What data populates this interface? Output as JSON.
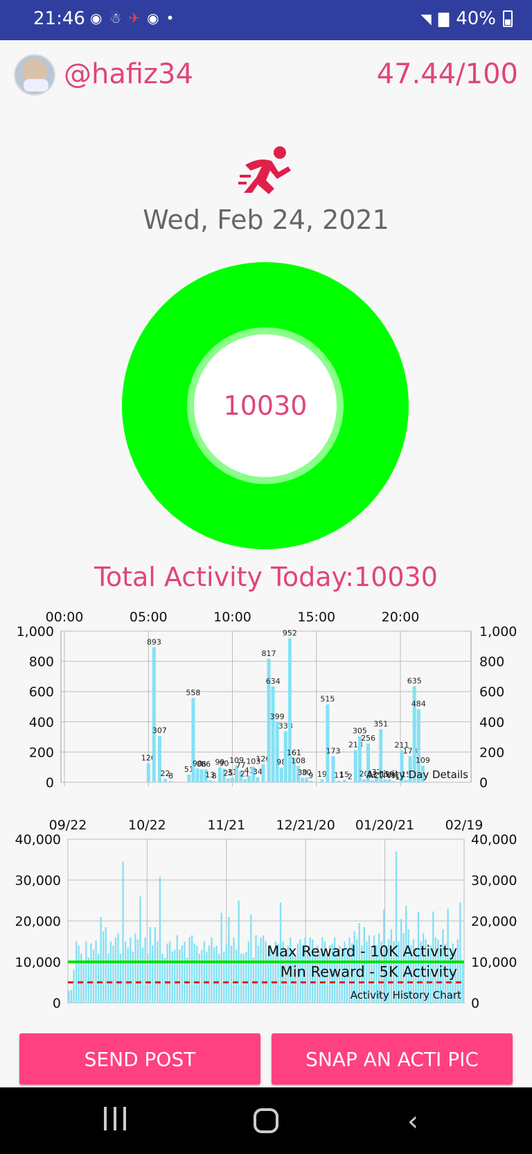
{
  "status_bar": {
    "time": "21:46",
    "battery_percent": "40%",
    "notification_icons": [
      "messenger-icon",
      "activity-app-icon",
      "runner-icon",
      "messenger-icon",
      "dot-icon"
    ],
    "system_icons": [
      "wifi-icon",
      "signal-icon",
      "battery-icon"
    ]
  },
  "header": {
    "username": "@hafiz34",
    "score": "47.44/100"
  },
  "activity": {
    "date": "Wed, Feb 24, 2021",
    "ring_value": "10030",
    "ring_progress": 1.0,
    "total_label": "Total Activity Today:10030"
  },
  "colors": {
    "accent": "#e0457b",
    "button": "#ff4081",
    "ring": "#00ff00",
    "bars": "#84e1f5",
    "max_line": "#00e000",
    "min_line": "#e02020",
    "status_bar": "#303f9f"
  },
  "chart_data": [
    {
      "type": "bar",
      "caption": "Activity Day Details",
      "x_tick_labels": [
        "00:00",
        "05:00",
        "10:00",
        "15:00",
        "20:00"
      ],
      "y_ticks": [
        "0",
        "200",
        "400",
        "600",
        "800",
        "1,000"
      ],
      "ylim": [
        0,
        1000
      ],
      "xlim_minutes": [
        0,
        1440
      ],
      "grid": true,
      "points": [
        {
          "t": 300,
          "v": 126
        },
        {
          "t": 320,
          "v": 893
        },
        {
          "t": 340,
          "v": 307
        },
        {
          "t": 360,
          "v": 22
        },
        {
          "t": 380,
          "v": 8
        },
        {
          "t": 445,
          "v": 51
        },
        {
          "t": 460,
          "v": 558
        },
        {
          "t": 475,
          "v": 90
        },
        {
          "t": 490,
          "v": 86
        },
        {
          "t": 505,
          "v": 86
        },
        {
          "t": 520,
          "v": 13
        },
        {
          "t": 535,
          "v": 8
        },
        {
          "t": 555,
          "v": 99
        },
        {
          "t": 570,
          "v": 90
        },
        {
          "t": 585,
          "v": 25
        },
        {
          "t": 600,
          "v": 31
        },
        {
          "t": 615,
          "v": 109
        },
        {
          "t": 630,
          "v": 77
        },
        {
          "t": 645,
          "v": 21
        },
        {
          "t": 660,
          "v": 43
        },
        {
          "t": 675,
          "v": 103
        },
        {
          "t": 690,
          "v": 34
        },
        {
          "t": 710,
          "v": 120
        },
        {
          "t": 730,
          "v": 817
        },
        {
          "t": 745,
          "v": 634
        },
        {
          "t": 760,
          "v": 399
        },
        {
          "t": 775,
          "v": 98
        },
        {
          "t": 790,
          "v": 338
        },
        {
          "t": 805,
          "v": 952
        },
        {
          "t": 820,
          "v": 161
        },
        {
          "t": 835,
          "v": 108
        },
        {
          "t": 850,
          "v": 30
        },
        {
          "t": 865,
          "v": 30
        },
        {
          "t": 880,
          "v": 9
        },
        {
          "t": 920,
          "v": 19
        },
        {
          "t": 940,
          "v": 515
        },
        {
          "t": 960,
          "v": 173
        },
        {
          "t": 980,
          "v": 11
        },
        {
          "t": 1000,
          "v": 15
        },
        {
          "t": 1020,
          "v": 2
        },
        {
          "t": 1040,
          "v": 213
        },
        {
          "t": 1055,
          "v": 305
        },
        {
          "t": 1070,
          "v": 20
        },
        {
          "t": 1085,
          "v": 256
        },
        {
          "t": 1100,
          "v": 13
        },
        {
          "t": 1115,
          "v": 32
        },
        {
          "t": 1130,
          "v": 351
        },
        {
          "t": 1145,
          "v": 19
        },
        {
          "t": 1160,
          "v": 19
        },
        {
          "t": 1175,
          "v": 9
        },
        {
          "t": 1190,
          "v": 1
        },
        {
          "t": 1205,
          "v": 211
        },
        {
          "t": 1220,
          "v": 15
        },
        {
          "t": 1235,
          "v": 173
        },
        {
          "t": 1250,
          "v": 635
        },
        {
          "t": 1265,
          "v": 484
        },
        {
          "t": 1280,
          "v": 109
        }
      ]
    },
    {
      "type": "bar",
      "caption": "Activity History Chart",
      "x_tick_labels": [
        "09/22",
        "10/22",
        "11/21",
        "12/21/20",
        "01/20/21",
        "02/19"
      ],
      "y_ticks": [
        "0",
        "10,000",
        "20,000",
        "30,000",
        "40,000"
      ],
      "ylim": [
        0,
        40000
      ],
      "grid": true,
      "reference_lines": [
        {
          "label": "Max Reward - 10K Activity",
          "value": 10000,
          "style": "solid"
        },
        {
          "label": "Min Reward - 5K Activity",
          "value": 5000,
          "style": "dashed"
        }
      ],
      "values": [
        3000,
        3200,
        8000,
        15000,
        14000,
        12000,
        10000,
        15000,
        11000,
        14500,
        13000,
        15200,
        12000,
        21000,
        17500,
        18500,
        12000,
        15000,
        14000,
        16000,
        17000,
        12000,
        34500,
        15000,
        13500,
        16000,
        12500,
        17000,
        15500,
        26000,
        13500,
        16000,
        12000,
        18500,
        14000,
        18500,
        15000,
        30700,
        12000,
        11000,
        14500,
        15000,
        12500,
        13000,
        16500,
        13000,
        14000,
        15000,
        11000,
        16000,
        16500,
        14500,
        14000,
        12000,
        13000,
        15000,
        12500,
        14000,
        16000,
        13500,
        14000,
        12000,
        22000,
        12500,
        14500,
        21000,
        14000,
        16000,
        13000,
        25000,
        12000,
        12000,
        12500,
        15000,
        21500,
        11000,
        16500,
        14000,
        16000,
        16500,
        15000,
        11000,
        14000,
        12000,
        15000,
        14500,
        24500,
        15000,
        13000,
        14000,
        16000,
        12500,
        11500,
        14500,
        15500,
        14000,
        16000,
        13000,
        16000,
        15500,
        12500,
        14000,
        12500,
        16000,
        15000,
        12000,
        14000,
        14500,
        16000,
        13000,
        14000,
        12000,
        15000,
        13500,
        16000,
        14500,
        17500,
        15500,
        19500,
        14000,
        18500,
        15000,
        16500,
        14000,
        16500,
        14000,
        17000,
        15000,
        22800,
        14000,
        15500,
        18000,
        15000,
        37000,
        15000,
        20500,
        17000,
        23700,
        18000,
        14000,
        15500,
        13500,
        22300,
        15000,
        17000,
        15500,
        13000,
        14000,
        22300,
        16000,
        15500,
        14000,
        18000,
        14500,
        23000,
        12000,
        14500,
        13000,
        15500,
        24500,
        10030
      ]
    }
  ],
  "buttons": {
    "send_post": "SEND POST",
    "snap": "SNAP AN ACTI PIC"
  },
  "nav_bar": {
    "icons": [
      "recent-apps-icon",
      "home-icon",
      "back-icon"
    ]
  }
}
